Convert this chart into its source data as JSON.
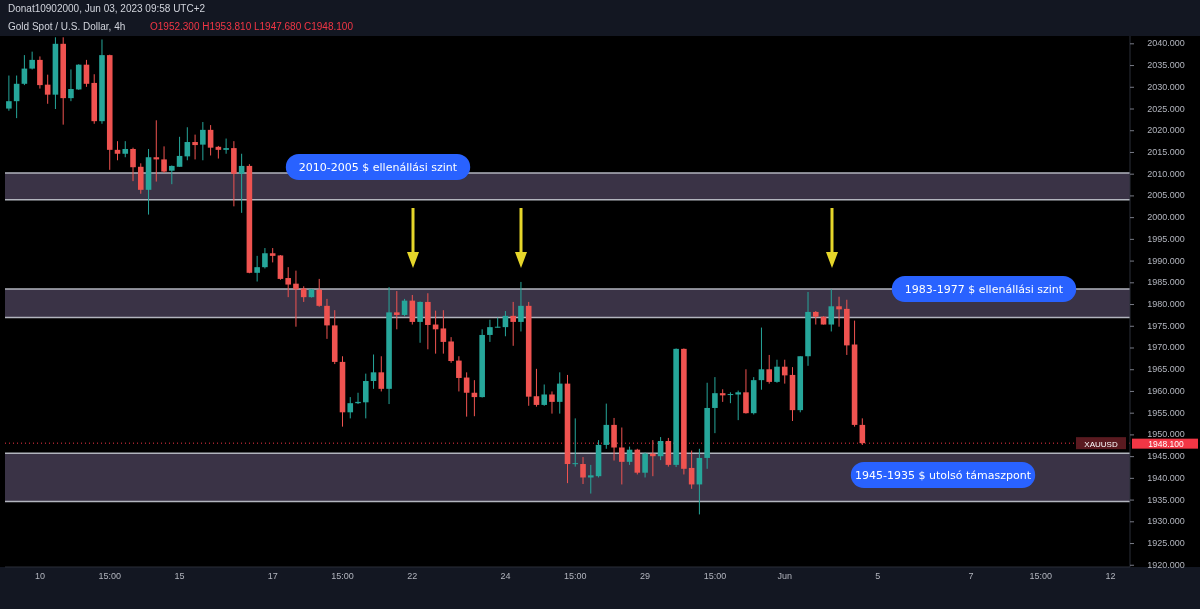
{
  "chart_data": {
    "type": "candlestick",
    "title": "Gold Spot / U.S. Dollar, 4h",
    "subtitle": "Donat10902000, Jun 03, 2023 09:58 UTC+2",
    "annotations": [
      "O1952.300 H1953.810 L1947.680 C1948.100",
      "1948.100"
    ],
    "categories": [
      null,
      null,
      null,
      null,
      "10",
      null,
      null,
      null,
      null,
      null,
      null,
      null,
      null,
      "15:00",
      null,
      null,
      null,
      null,
      null,
      null,
      null,
      null,
      "15",
      null,
      null,
      null,
      null,
      null,
      null,
      null,
      null,
      null,
      null,
      null,
      "17",
      null,
      null,
      null,
      null,
      null,
      null,
      null,
      null,
      "15:00",
      null,
      null,
      null,
      null,
      null,
      null,
      null,
      null,
      "22",
      null,
      null,
      null,
      null,
      null,
      null,
      null,
      null,
      null,
      null,
      null,
      "24",
      null,
      null,
      null,
      null,
      null,
      null,
      null,
      null,
      "15:00",
      null,
      null,
      null,
      null,
      null,
      null,
      null,
      null,
      "29",
      null,
      null,
      null,
      null,
      null,
      null,
      null,
      null,
      "15:00",
      null,
      null,
      null,
      null,
      null,
      null,
      null,
      null,
      "Jun",
      null,
      null,
      null,
      null,
      null,
      null,
      null,
      null,
      null,
      null,
      null,
      "5",
      null,
      null,
      null,
      null,
      null,
      null,
      null,
      null,
      null,
      null,
      null,
      "7",
      null,
      null,
      null,
      null,
      null,
      null,
      null,
      null,
      "15:00",
      null,
      null,
      null,
      null,
      null,
      null,
      null,
      null,
      "12",
      null,
      null
    ],
    "ohlc": [
      [
        2025.1,
        2032.7,
        2024.6,
        2026.8
      ],
      [
        2026.8,
        2032.7,
        2022.9,
        2030.8
      ],
      [
        2030.8,
        2037.4,
        2030.5,
        2034.3
      ],
      [
        2034.3,
        2038.2,
        2034.1,
        2036.3
      ],
      [
        2036.3,
        2037.1,
        2029.7,
        2030.5
      ],
      [
        2030.6,
        2032.9,
        2026.2,
        2028.3
      ],
      [
        2028.3,
        2041.5,
        2025.0,
        2040.0
      ],
      [
        2040.0,
        2041.5,
        2021.4,
        2027.5
      ],
      [
        2027.5,
        2034.1,
        2026.8,
        2029.6
      ],
      [
        2029.5,
        2035.3,
        2029.4,
        2035.2
      ],
      [
        2035.2,
        2036.3,
        2030.1,
        2030.8
      ],
      [
        2031.0,
        2033.0,
        2021.6,
        2022.2
      ],
      [
        2022.2,
        2041.0,
        2021.6,
        2037.4
      ],
      [
        2037.4,
        2037.5,
        2011.0,
        2015.6
      ],
      [
        2015.6,
        2017.6,
        2013.2,
        2014.7
      ],
      [
        2014.7,
        2017.6,
        2013.9,
        2015.8
      ],
      [
        2015.8,
        2016.1,
        2008.4,
        2011.6
      ],
      [
        2011.7,
        2012.5,
        2005.5,
        2006.4
      ],
      [
        2006.4,
        2015.8,
        2000.7,
        2013.9
      ],
      [
        2013.9,
        2022.4,
        2008.3,
        2013.4
      ],
      [
        2013.4,
        2016.4,
        2010.3,
        2010.6
      ],
      [
        2010.8,
        2012.0,
        2007.7,
        2011.9
      ],
      [
        2011.7,
        2018.6,
        2011.7,
        2014.2
      ],
      [
        2014.1,
        2020.8,
        2013.2,
        2017.4
      ],
      [
        2017.4,
        2019.1,
        2013.4,
        2016.7
      ],
      [
        2016.8,
        2022.0,
        2013.2,
        2020.2
      ],
      [
        2020.2,
        2021.3,
        2014.3,
        2016.1
      ],
      [
        2016.3,
        2016.5,
        2013.6,
        2015.6
      ],
      [
        2015.6,
        2018.2,
        2014.7,
        2016.0
      ],
      [
        2016.0,
        2017.6,
        2002.6,
        2010.1
      ],
      [
        2010.1,
        2014.7,
        2001.1,
        2011.9
      ],
      [
        2011.9,
        2012.3,
        1987.2,
        1987.3
      ],
      [
        1987.3,
        1991.2,
        1985.3,
        1988.6
      ],
      [
        1988.6,
        1993.0,
        1988.3,
        1991.8
      ],
      [
        1991.8,
        1993.0,
        1989.7,
        1991.2
      ],
      [
        1991.3,
        1991.4,
        1985.7,
        1985.9
      ],
      [
        1986.1,
        1988.6,
        1981.7,
        1984.6
      ],
      [
        1984.8,
        1987.8,
        1974.9,
        1983.5
      ],
      [
        1983.7,
        1984.2,
        1980.6,
        1981.7
      ],
      [
        1981.7,
        1983.6,
        1981.6,
        1983.5
      ],
      [
        1983.4,
        1985.9,
        1979.5,
        1979.7
      ],
      [
        1979.7,
        1981.3,
        1972.1,
        1975.2
      ],
      [
        1975.2,
        1978.7,
        1966.3,
        1966.8
      ],
      [
        1966.8,
        1968.1,
        1951.9,
        1955.2
      ],
      [
        1955.2,
        1958.7,
        1953.8,
        1957.3
      ],
      [
        1957.3,
        1959.7,
        1957.1,
        1957.6
      ],
      [
        1957.5,
        1964.1,
        1953.8,
        1962.4
      ],
      [
        1962.4,
        1968.5,
        1960.6,
        1964.4
      ],
      [
        1964.4,
        1968.1,
        1960.0,
        1960.6
      ],
      [
        1960.6,
        1984.0,
        1957.1,
        1978.2
      ],
      [
        1978.2,
        1983.1,
        1974.3,
        1977.6
      ],
      [
        1977.6,
        1981.3,
        1977.3,
        1980.9
      ],
      [
        1980.9,
        1982.2,
        1975.4,
        1976.0
      ],
      [
        1976.0,
        1980.7,
        1971.2,
        1980.6
      ],
      [
        1980.6,
        1982.6,
        1969.7,
        1975.3
      ],
      [
        1975.4,
        1978.6,
        1968.7,
        1974.3
      ],
      [
        1974.5,
        1978.7,
        1968.7,
        1971.4
      ],
      [
        1971.5,
        1972.5,
        1966.6,
        1967.0
      ],
      [
        1967.1,
        1968.1,
        1960.0,
        1963.1
      ],
      [
        1963.2,
        1964.4,
        1954.2,
        1959.7
      ],
      [
        1959.7,
        1962.6,
        1954.3,
        1958.7
      ],
      [
        1958.7,
        1974.3,
        1958.6,
        1973.0
      ],
      [
        1973.0,
        1976.5,
        1971.4,
        1974.8
      ],
      [
        1974.7,
        1977.0,
        1974.7,
        1974.9
      ],
      [
        1974.8,
        1978.5,
        1972.7,
        1977.4
      ],
      [
        1977.4,
        1980.6,
        1970.5,
        1976.0
      ],
      [
        1976.0,
        1985.2,
        1973.8,
        1979.7
      ],
      [
        1979.7,
        1980.6,
        1956.7,
        1958.8
      ],
      [
        1958.9,
        1965.2,
        1956.5,
        1956.9
      ],
      [
        1956.9,
        1961.6,
        1956.7,
        1959.3
      ],
      [
        1959.3,
        1960.0,
        1954.9,
        1957.6
      ],
      [
        1957.6,
        1964.4,
        1954.9,
        1961.8
      ],
      [
        1961.8,
        1963.8,
        1938.9,
        1943.3
      ],
      [
        1943.3,
        1953.8,
        1942.7,
        1943.5
      ],
      [
        1943.3,
        1944.9,
        1938.7,
        1940.2
      ],
      [
        1940.2,
        1943.1,
        1936.5,
        1940.7
      ],
      [
        1940.5,
        1948.8,
        1940.2,
        1947.7
      ],
      [
        1947.7,
        1957.2,
        1946.8,
        1952.3
      ],
      [
        1952.3,
        1953.9,
        1944.1,
        1947.1
      ],
      [
        1947.1,
        1951.7,
        1938.6,
        1943.8
      ],
      [
        1943.8,
        1947.3,
        1943.1,
        1946.6
      ],
      [
        1946.6,
        1946.8,
        1940.9,
        1941.3
      ],
      [
        1941.3,
        1946.0,
        1940.2,
        1945.7
      ],
      [
        1945.7,
        1948.8,
        1940.5,
        1945.1
      ],
      [
        1945.1,
        1949.5,
        1944.2,
        1948.6
      ],
      [
        1948.6,
        1949.3,
        1942.7,
        1943.1
      ],
      [
        1943.1,
        1969.9,
        1942.6,
        1969.8
      ],
      [
        1969.8,
        1969.9,
        1940.9,
        1942.2
      ],
      [
        1942.4,
        1946.4,
        1937.6,
        1938.6
      ],
      [
        1938.6,
        1946.8,
        1931.7,
        1944.7
      ],
      [
        1944.7,
        1962.0,
        1942.2,
        1956.2
      ],
      [
        1956.2,
        1963.3,
        1950.4,
        1959.6
      ],
      [
        1959.6,
        1960.5,
        1957.6,
        1959.1
      ],
      [
        1959.3,
        1959.8,
        1957.3,
        1959.4
      ],
      [
        1959.3,
        1960.2,
        1953.4,
        1959.8
      ],
      [
        1959.8,
        1965.1,
        1954.9,
        1955.0
      ],
      [
        1955.0,
        1963.3,
        1954.7,
        1962.6
      ],
      [
        1962.6,
        1974.7,
        1960.4,
        1965.1
      ],
      [
        1965.1,
        1968.4,
        1961.8,
        1962.2
      ],
      [
        1962.2,
        1967.3,
        1962.0,
        1965.7
      ],
      [
        1965.7,
        1967.3,
        1961.8,
        1963.7
      ],
      [
        1963.8,
        1965.6,
        1953.2,
        1955.7
      ],
      [
        1955.7,
        1968.1,
        1955.2,
        1968.1
      ],
      [
        1968.1,
        1982.9,
        1965.9,
        1978.3
      ],
      [
        1978.3,
        1978.5,
        1975.4,
        1977.2
      ],
      [
        1977.2,
        1977.3,
        1975.4,
        1975.4
      ],
      [
        1975.4,
        1983.5,
        1973.8,
        1979.6
      ],
      [
        1979.6,
        1981.8,
        1974.9,
        1978.9
      ],
      [
        1979.0,
        1981.1,
        1968.4,
        1970.6
      ],
      [
        1970.8,
        1976.3,
        1951.9,
        1952.3
      ],
      [
        1952.3,
        1953.81,
        1947.68,
        1948.1
      ],
      null,
      null,
      null,
      null,
      null,
      null,
      null,
      null,
      null,
      null,
      null,
      null,
      null,
      null,
      null,
      null,
      null,
      null,
      null,
      null,
      null,
      null,
      null,
      null,
      null,
      null,
      null,
      null,
      null,
      null,
      null,
      null,
      null,
      null
    ],
    "ylim": [
      1919.6,
      2041.8
    ],
    "yticks": [
      {
        "value": 1920,
        "label": "1920.000"
      },
      {
        "value": 1925,
        "label": "1925.000"
      },
      {
        "value": 1930,
        "label": "1930.000"
      },
      {
        "value": 1935,
        "label": "1935.000"
      },
      {
        "value": 1940,
        "label": "1940.000"
      },
      {
        "value": 1945,
        "label": "1945.000"
      },
      {
        "value": 1950,
        "label": "1950.000"
      },
      {
        "value": 1955,
        "label": "1955.000"
      },
      {
        "value": 1960,
        "label": "1960.000"
      },
      {
        "value": 1965,
        "label": "1965.000"
      },
      {
        "value": 1970,
        "label": "1970.000"
      },
      {
        "value": 1975,
        "label": "1975.000"
      },
      {
        "value": 1980,
        "label": "1980.000"
      },
      {
        "value": 1985,
        "label": "1985.000"
      },
      {
        "value": 1990,
        "label": "1990.000"
      },
      {
        "value": 1995,
        "label": "1995.000"
      },
      {
        "value": 2000,
        "label": "2000.000"
      },
      {
        "value": 2005,
        "label": "2005.000"
      },
      {
        "value": 2010,
        "label": "2010.000"
      },
      {
        "value": 2015,
        "label": "2015.000"
      },
      {
        "value": 2020,
        "label": "2020.000"
      },
      {
        "value": 2025,
        "label": "2025.000"
      },
      {
        "value": 2030,
        "label": "2030.000"
      },
      {
        "value": 2035,
        "label": "2035.000"
      },
      {
        "value": 2040,
        "label": "2040.000"
      }
    ],
    "bands": [
      {
        "axis": "y",
        "from": 2004.1,
        "to": 2010.3,
        "label": "2010-2005 $ ellenállási szint",
        "color": "#3a3346"
      },
      {
        "axis": "y",
        "from": 1977.0,
        "to": 1983.6,
        "label": "1983-1977 $ ellenállási szint",
        "color": "#3a3346"
      },
      {
        "axis": "y",
        "from": 1934.7,
        "to": 1945.8,
        "label": "1945-1935 $ utolsó támaszpont",
        "color": "#3a3346"
      }
    ],
    "ref_lines": [
      {
        "axis": "y",
        "value": 1948.1,
        "label": "XAUUSD",
        "color": "#f23645",
        "line_style": "dotted"
      }
    ]
  }
}
